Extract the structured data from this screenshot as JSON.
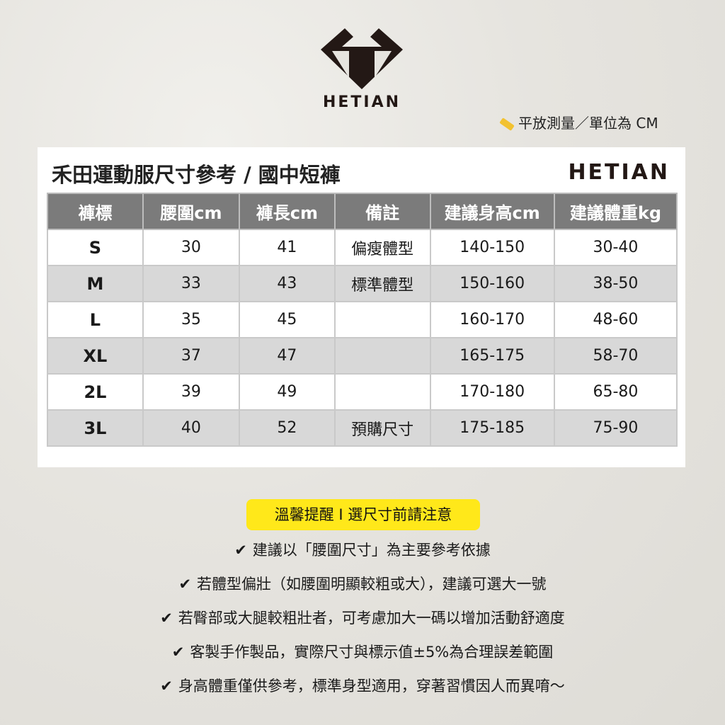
{
  "brand": "HETIAN",
  "unit_note": "平放測量／單位為 CM",
  "card": {
    "title": "禾田運動服尺寸參考 / 國中短褲",
    "brand": "HETIAN"
  },
  "table": {
    "headers": [
      "褲標",
      "腰圍cm",
      "褲長cm",
      "備註",
      "建議身高cm",
      "建議體重kg"
    ],
    "rows": [
      [
        "S",
        "30",
        "41",
        "偏瘦體型",
        "140-150",
        "30-40"
      ],
      [
        "M",
        "33",
        "43",
        "標準體型",
        "150-160",
        "38-50"
      ],
      [
        "L",
        "35",
        "45",
        "",
        "160-170",
        "48-60"
      ],
      [
        "XL",
        "37",
        "47",
        "",
        "165-175",
        "58-70"
      ],
      [
        "2L",
        "39",
        "49",
        "",
        "170-180",
        "65-80"
      ],
      [
        "3L",
        "40",
        "52",
        "預購尺寸",
        "175-185",
        "75-90"
      ]
    ]
  },
  "notice": "溫馨提醒 I 選尺寸前請注意",
  "check_mark": "✔",
  "tips": [
    "建議以「腰圍尺寸」為主要參考依據",
    "若體型偏壯（如腰圍明顯較粗或大），建議可選大一號",
    "若臀部或大腿較粗壯者，可考慮加大一碼以增加活動舒適度",
    "客製手作製品，實際尺寸與標示值±5%為合理誤差範圍",
    "身高體重僅供參考，標準身型適用，穿著習慣因人而異唷～"
  ],
  "colors": {
    "header_bg": "#7b7b7b",
    "alt_row": "#d8d8d8",
    "notice_bg": "#ffe81a",
    "logo": "#231815"
  }
}
